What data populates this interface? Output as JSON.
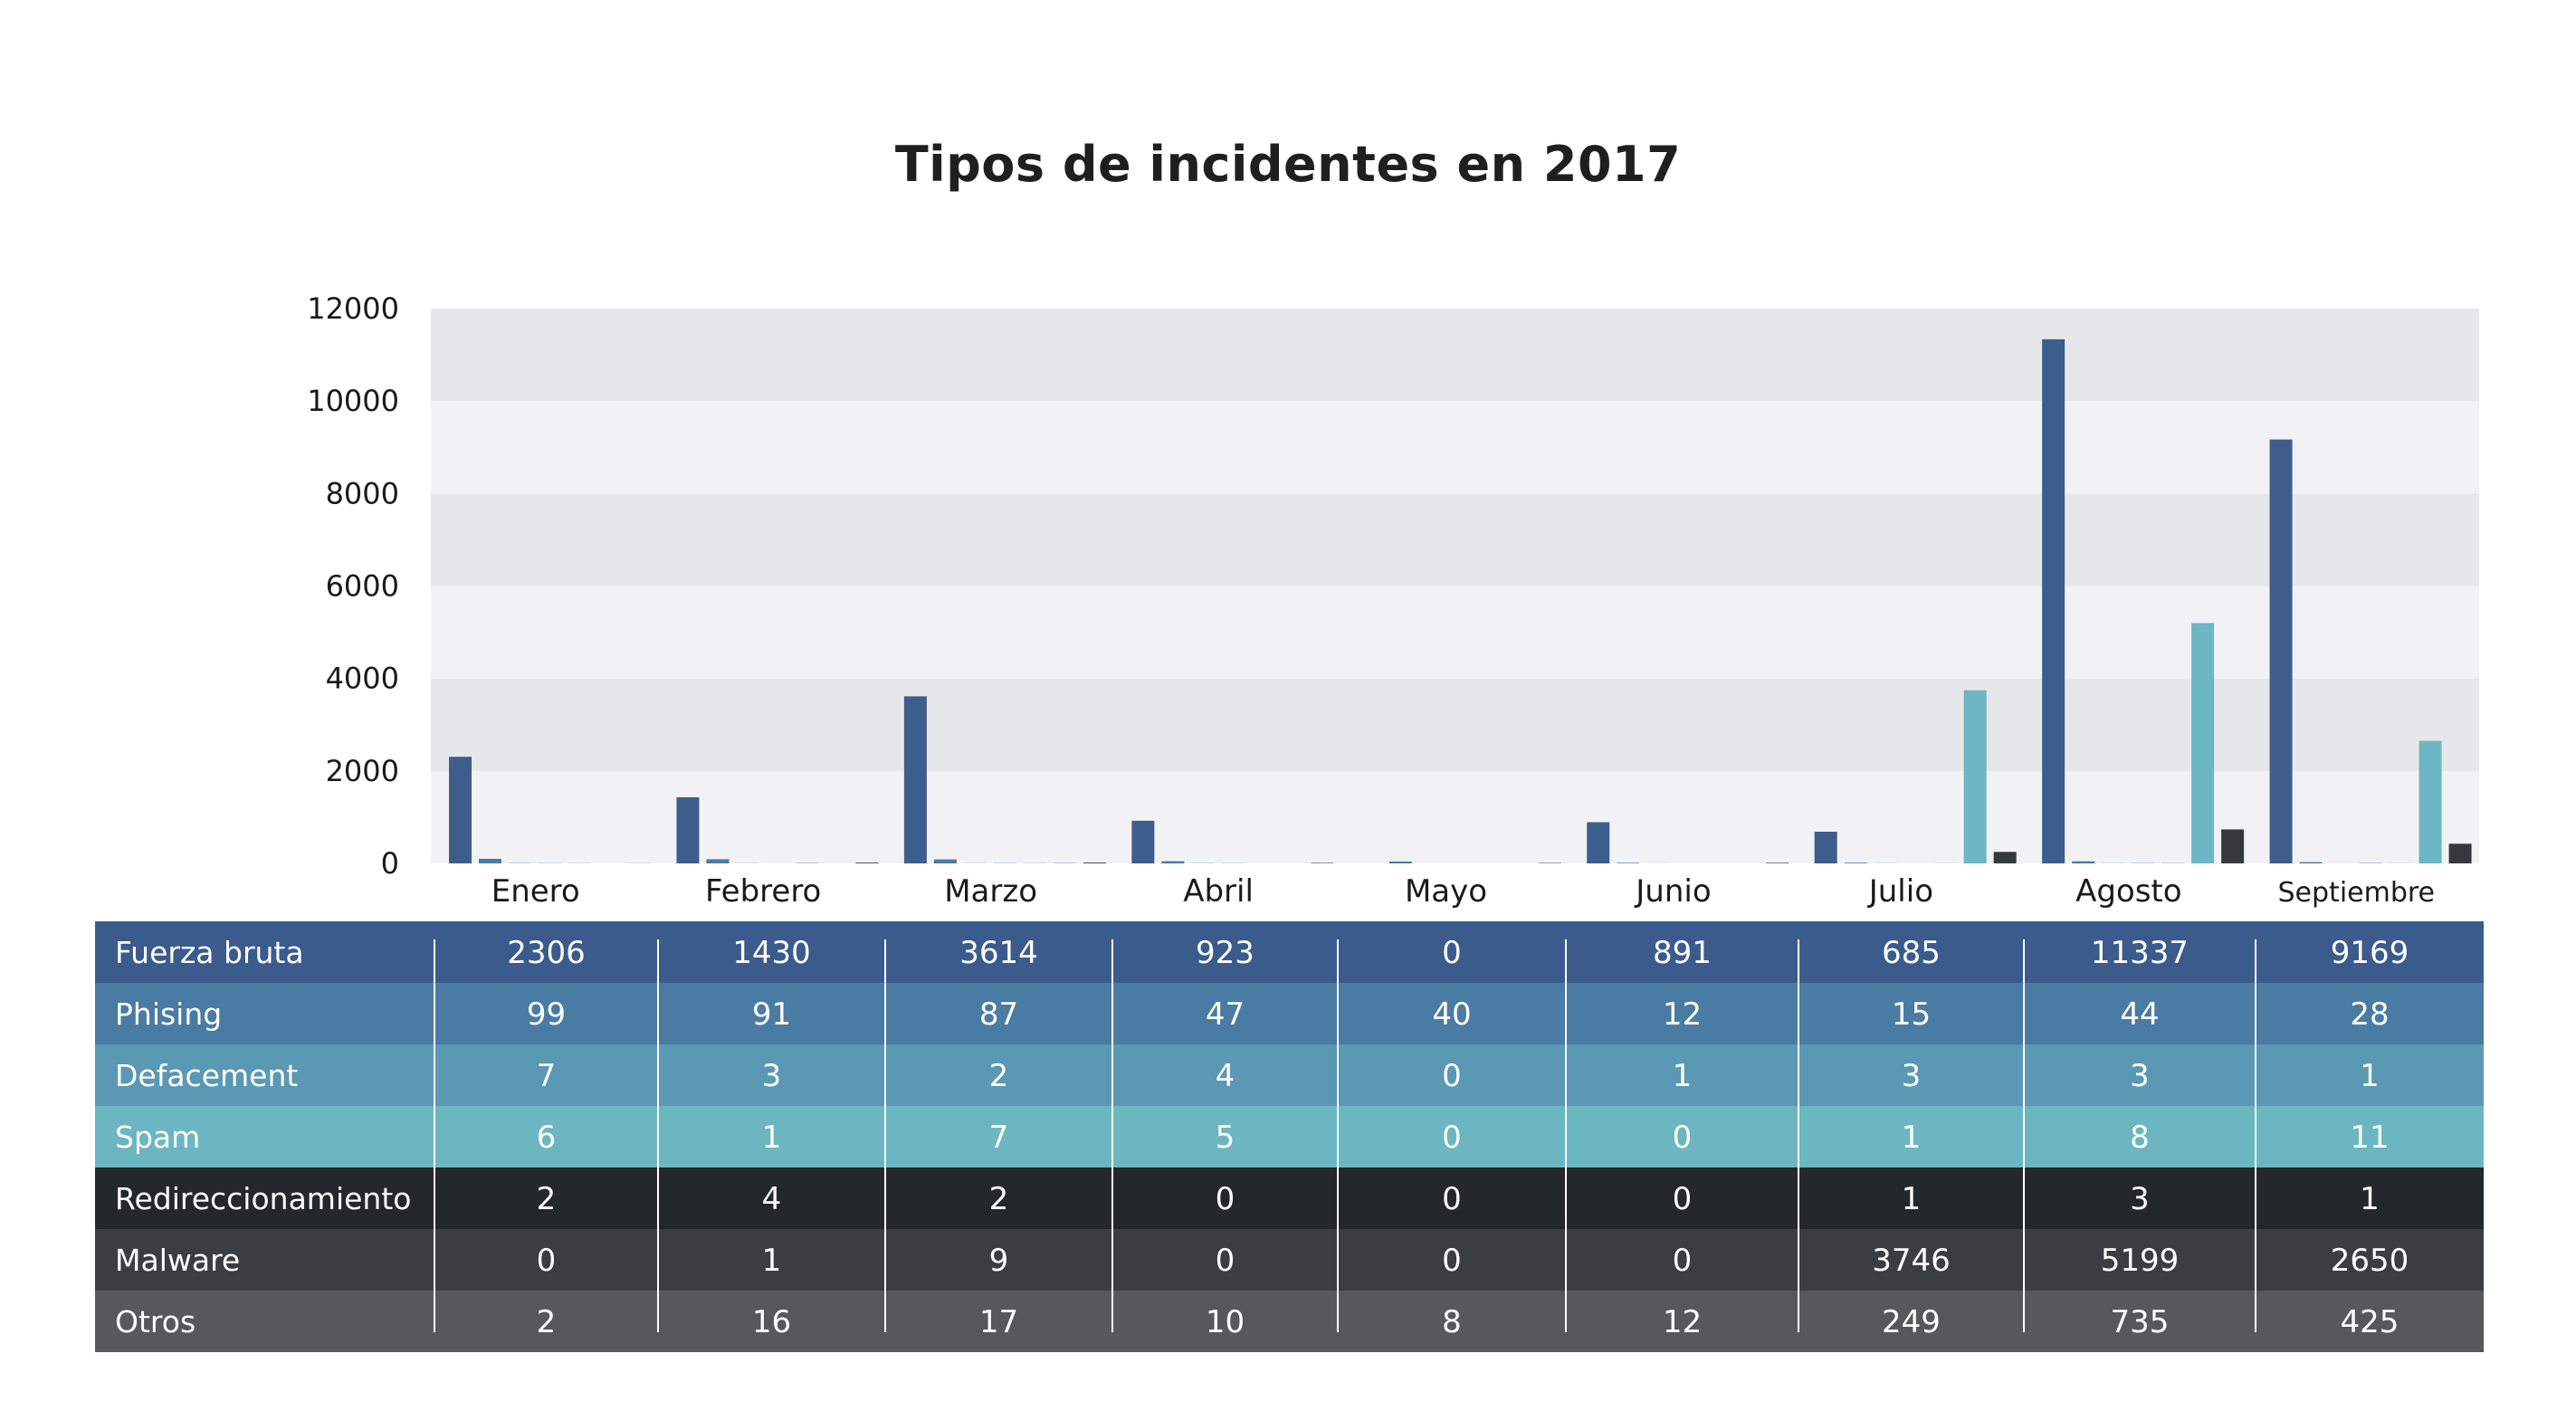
{
  "chart_data": {
    "type": "bar",
    "title": "Tipos de incidentes en 2017",
    "categories": [
      "Enero",
      "Febrero",
      "Marzo",
      "Abril",
      "Mayo",
      "Junio",
      "Julio",
      "Agosto",
      "Septiembre"
    ],
    "ylim": [
      0,
      12000
    ],
    "yticks": [
      "0",
      "2000",
      "4000",
      "6000",
      "8000",
      "10000",
      "12000"
    ],
    "grid": true,
    "legend": "table-below",
    "series": [
      {
        "name": "Fuerza bruta",
        "color": "#3b5b8c",
        "text_color": "#ffffff",
        "values": [
          2306,
          1430,
          3614,
          923,
          0,
          891,
          685,
          11337,
          9169
        ]
      },
      {
        "name": "Phising",
        "color": "#4a7ba3",
        "text_color": "#ffffff",
        "values": [
          99,
          91,
          87,
          47,
          40,
          12,
          15,
          44,
          28
        ]
      },
      {
        "name": "Defacement",
        "color": "#5a98b4",
        "text_color": "#ffffff",
        "values": [
          7,
          3,
          2,
          4,
          0,
          1,
          3,
          3,
          1
        ]
      },
      {
        "name": "Spam",
        "color": "#6cb6c2",
        "text_color": "#ffffff",
        "values": [
          6,
          1,
          7,
          5,
          0,
          0,
          1,
          8,
          11
        ]
      },
      {
        "name": "Redireccionamiento",
        "color": "#23282b",
        "text_color": "#ffffff",
        "values": [
          2,
          4,
          2,
          0,
          0,
          0,
          1,
          3,
          1
        ]
      },
      {
        "name": "Malware",
        "color": "#3a3e41",
        "text_color": "#ffffff",
        "values": [
          0,
          1,
          9,
          0,
          0,
          0,
          3746,
          5199,
          2650
        ]
      },
      {
        "name": "Otros",
        "color": "#565859",
        "text_color": "#ffffff",
        "values": [
          2,
          16,
          17,
          10,
          8,
          12,
          249,
          735,
          425
        ]
      }
    ],
    "bar_colors": {
      "Fuerza bruta": "#3d5e8d",
      "Phising": "#4a7ba3",
      "Defacement": "#5a98b4",
      "Spam": "#6cb6c2",
      "Redireccionamiento": "#23282b",
      "Malware": "#6db6c3",
      "Otros": "#35393c"
    },
    "band_colors": [
      "#f2f2f4",
      "#e6e7e9"
    ]
  }
}
